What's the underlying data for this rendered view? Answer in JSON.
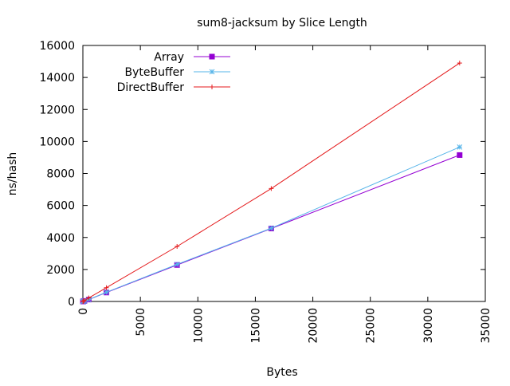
{
  "chart_data": {
    "type": "line",
    "title": "sum8-jacksum by Slice Length",
    "xlabel": "Bytes",
    "ylabel": "ns/hash",
    "xlim": [
      0,
      35000
    ],
    "ylim": [
      0,
      16000
    ],
    "x_ticks": [
      0,
      5000,
      10000,
      15000,
      20000,
      25000,
      30000,
      35000
    ],
    "y_ticks": [
      0,
      2000,
      4000,
      6000,
      8000,
      10000,
      12000,
      14000,
      16000
    ],
    "grid": false,
    "legend_position": "top-left",
    "series": [
      {
        "name": "Array",
        "color": "#9400d3",
        "marker": "square",
        "x": [
          8,
          32,
          128,
          512,
          2048,
          8192,
          16384,
          32768
        ],
        "y": [
          2,
          6,
          30,
          120,
          560,
          2280,
          4560,
          9150
        ]
      },
      {
        "name": "ByteBuffer",
        "color": "#56b4e9",
        "marker": "star",
        "x": [
          8,
          32,
          128,
          512,
          2048,
          8192,
          16384,
          32768
        ],
        "y": [
          2,
          6,
          32,
          125,
          580,
          2320,
          4580,
          9650
        ]
      },
      {
        "name": "DirectBuffer",
        "color": "#e41a1c",
        "marker": "plus",
        "x": [
          8,
          32,
          128,
          512,
          2048,
          8192,
          16384,
          32768
        ],
        "y": [
          3,
          12,
          55,
          220,
          860,
          3440,
          7060,
          14900
        ]
      }
    ]
  }
}
